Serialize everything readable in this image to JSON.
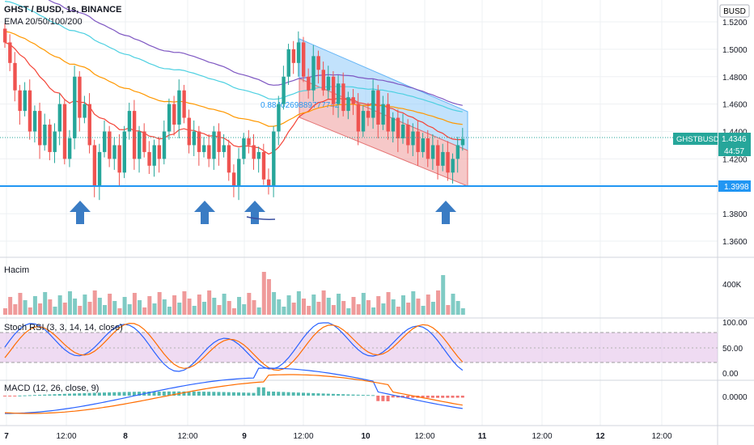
{
  "header": {
    "symbol_line": "GHST / BUSD, 1s, BINANCE",
    "ema_line": "EMA 20/50/100/200",
    "currency_badge": "BUSD"
  },
  "price_axis": {
    "ticks": [
      "1.5200",
      "1.5000",
      "1.4800",
      "1.4600",
      "1.4400",
      "1.4200",
      "1.3800",
      "1.3600"
    ],
    "current_symbol": "GHSTBUSD",
    "current_price": "1.4346",
    "countdown": "44:57",
    "support_label": "1.3998"
  },
  "annotations": {
    "channel_text": "0.8840269889777742"
  },
  "volume_pane": {
    "title": "Hacim",
    "tick": "400K"
  },
  "stoch_pane": {
    "title": "Stoch RSI (3, 3, 14, 14, close)",
    "ticks": [
      "100.00",
      "50.00",
      "0.00"
    ]
  },
  "macd_pane": {
    "title": "MACD (12, 26, close, 9)",
    "tick": "0.0000"
  },
  "time_axis": {
    "labels": [
      "7",
      "12:00",
      "8",
      "12:00",
      "9",
      "12:00",
      "10",
      "12:00",
      "11",
      "12:00",
      "12",
      "12:00"
    ]
  },
  "colors": {
    "up": "#26a69a",
    "down": "#ef5350",
    "support": "#2196f3",
    "arrow": "#3a7cc4",
    "ema20": "#f44336",
    "ema50": "#ff9800",
    "ema100": "#4dd0e1",
    "ema200": "#7e57c2"
  },
  "chart_data": {
    "type": "candlestick",
    "ylim": [
      1.35,
      1.53
    ],
    "support_level": 1.3998,
    "series": [
      {
        "name": "EMA 20/50/100/200"
      }
    ],
    "candles_close": [
      1.505,
      1.49,
      1.47,
      1.455,
      1.47,
      1.44,
      1.455,
      1.43,
      1.445,
      1.425,
      1.44,
      1.46,
      1.42,
      1.435,
      1.48,
      1.45,
      1.46,
      1.43,
      1.4,
      1.425,
      1.44,
      1.42,
      1.43,
      1.41,
      1.44,
      1.455,
      1.42,
      1.44,
      1.425,
      1.415,
      1.43,
      1.42,
      1.44,
      1.46,
      1.445,
      1.47,
      1.45,
      1.43,
      1.44,
      1.425,
      1.43,
      1.42,
      1.44,
      1.425,
      1.43,
      1.41,
      1.4,
      1.42,
      1.435,
      1.43,
      1.42,
      1.425,
      1.405,
      1.4,
      1.44,
      1.46,
      1.48,
      1.5,
      1.49,
      1.505,
      1.48,
      1.47,
      1.495,
      1.485,
      1.47,
      1.48,
      1.46,
      1.475,
      1.455,
      1.465,
      1.46,
      1.44,
      1.455,
      1.45,
      1.47,
      1.445,
      1.46,
      1.44,
      1.45,
      1.435,
      1.445,
      1.43,
      1.44,
      1.425,
      1.435,
      1.42,
      1.43,
      1.415,
      1.425,
      1.41,
      1.42,
      1.43,
      1.4346
    ]
  }
}
